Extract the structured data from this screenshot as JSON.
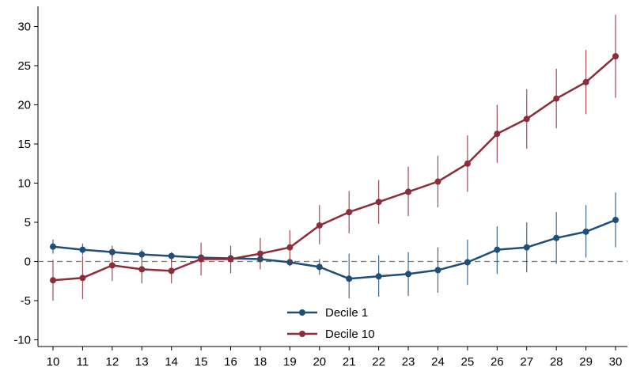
{
  "chart_data": {
    "type": "line",
    "title": "",
    "xlabel": "",
    "ylabel": "",
    "x": [
      10,
      11,
      12,
      13,
      14,
      15,
      16,
      18,
      19,
      20,
      21,
      22,
      23,
      24,
      25,
      26,
      27,
      28,
      29,
      30
    ],
    "xlim": [
      10,
      30
    ],
    "ylim": [
      -11,
      33
    ],
    "yticks": [
      -10,
      -5,
      0,
      5,
      10,
      15,
      20,
      25,
      30
    ],
    "reference_line": {
      "y": 0,
      "style": "dashed"
    },
    "grid": false,
    "legend_position": "bottom-center",
    "series": [
      {
        "name": "Decile 1",
        "color": "#1f4e79",
        "values": [
          1.9,
          1.5,
          1.2,
          0.9,
          0.7,
          0.5,
          0.4,
          0.3,
          -0.1,
          -0.7,
          -2.2,
          -1.9,
          -1.6,
          -1.1,
          -0.1,
          1.5,
          1.8,
          3.0,
          3.8,
          5.3
        ],
        "ci_low": [
          1.0,
          0.8,
          0.5,
          0.3,
          0.2,
          0.1,
          0.0,
          -0.1,
          -0.6,
          -1.7,
          -4.7,
          -4.5,
          -4.4,
          -4.0,
          -3.0,
          -1.6,
          -1.4,
          -0.3,
          0.5,
          1.8
        ],
        "ci_high": [
          2.8,
          2.3,
          2.0,
          1.5,
          1.2,
          0.9,
          0.8,
          0.7,
          0.4,
          0.3,
          1.0,
          0.8,
          1.2,
          1.8,
          2.8,
          4.5,
          5.0,
          6.3,
          7.2,
          8.8
        ]
      },
      {
        "name": "Decile 10",
        "color": "#8b2d3a",
        "values": [
          -2.4,
          -2.1,
          -0.5,
          -1.0,
          -1.2,
          0.3,
          0.3,
          1.0,
          1.8,
          4.6,
          6.3,
          7.6,
          8.9,
          10.2,
          12.5,
          16.3,
          18.2,
          20.8,
          22.9,
          26.2
        ],
        "ci_low": [
          -5.0,
          -4.8,
          -2.5,
          -2.8,
          -2.8,
          -1.8,
          -1.5,
          -1.0,
          -0.3,
          2.2,
          3.6,
          4.8,
          5.8,
          6.9,
          8.9,
          12.6,
          14.4,
          17.0,
          18.8,
          20.9
        ],
        "ci_high": [
          0.2,
          0.7,
          1.5,
          0.9,
          0.6,
          2.4,
          2.0,
          3.0,
          4.0,
          7.2,
          9.0,
          10.4,
          12.1,
          13.5,
          16.1,
          20.0,
          22.0,
          24.6,
          27.0,
          31.5
        ]
      }
    ]
  }
}
